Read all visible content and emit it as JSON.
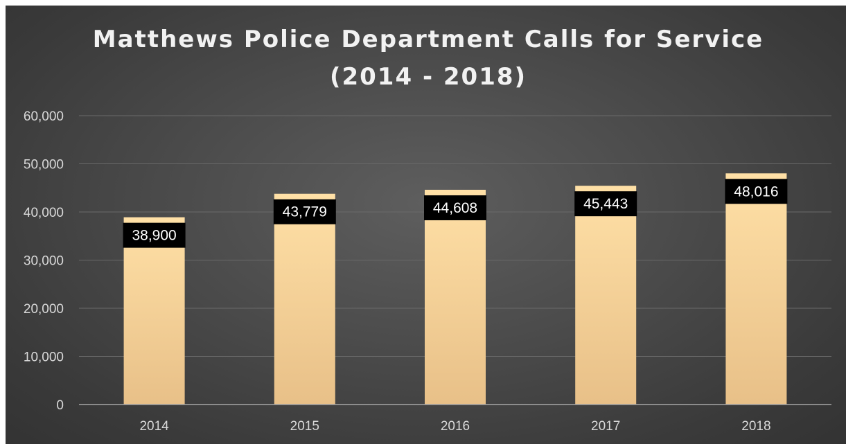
{
  "chart_data": {
    "type": "bar",
    "title_lines": [
      "Matthews Police Department Calls for Service",
      "(2014 - 2018)"
    ],
    "xlabel": "",
    "ylabel": "",
    "categories": [
      "2014",
      "2015",
      "2016",
      "2017",
      "2018"
    ],
    "values": [
      38900,
      43779,
      44608,
      45443,
      48016
    ],
    "value_labels": [
      "38,900",
      "43,779",
      "44,608",
      "45,443",
      "48,016"
    ],
    "ylim": [
      0,
      60000
    ],
    "yticks": [
      0,
      10000,
      20000,
      30000,
      40000,
      50000,
      60000
    ],
    "ytick_labels": [
      "0",
      "10,000",
      "20,000",
      "30,000",
      "40,000",
      "50,000",
      "60,000"
    ],
    "grid": true,
    "legend": "none",
    "colors": {
      "bar_top": "#ffe0a6",
      "bar_bottom": "#e8c088",
      "label_bg": "#000000",
      "label_text": "#ffffff",
      "background": "#4a4a4a"
    }
  }
}
